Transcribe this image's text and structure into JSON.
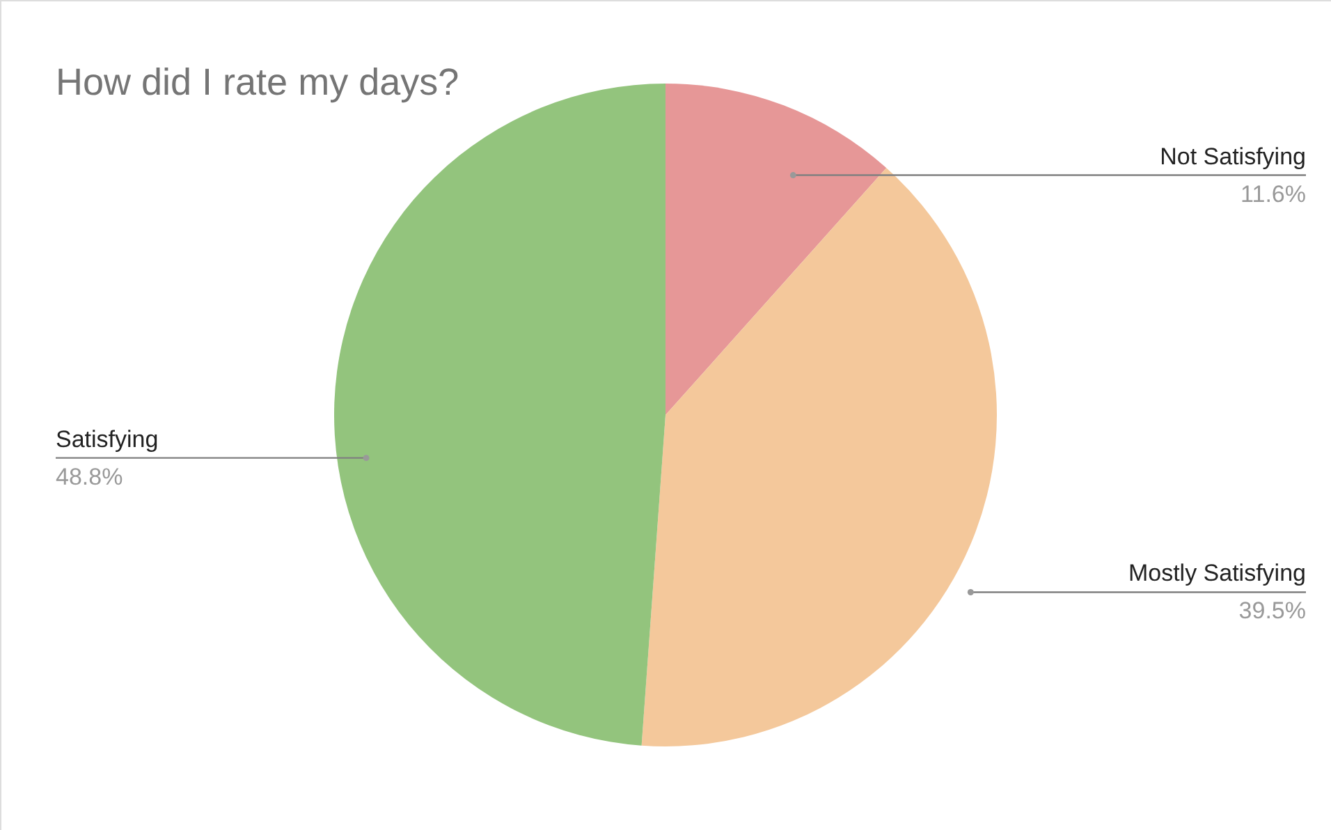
{
  "chart_data": {
    "type": "pie",
    "title": "How did I rate my days?",
    "categories": [
      "Not Satisfying",
      "Mostly Satisfying",
      "Satisfying"
    ],
    "values": [
      11.6,
      39.5,
      48.8
    ],
    "value_labels": [
      "11.6%",
      "39.5%",
      "48.8%"
    ],
    "colors": [
      "#e69797",
      "#f4c89b",
      "#93c47d"
    ],
    "legend": false
  }
}
